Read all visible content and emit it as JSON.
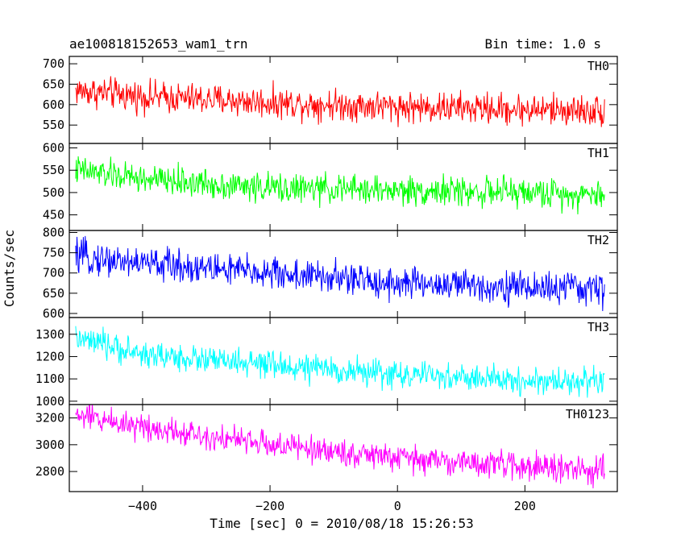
{
  "chart_data": {
    "type": "line",
    "title": "ae100818152653_wam1_trn",
    "bin_time_label": "Bin time: 1.0 s",
    "xlabel": "Time [sec] 0 = 2010/08/18 15:26:53",
    "ylabel": "Counts/sec",
    "xlim": [
      -515,
      345
    ],
    "x_range": [
      -505,
      325
    ],
    "x_ticks": [
      -400,
      -200,
      0,
      200
    ],
    "x_tick_labels": [
      "−400",
      "−200",
      "0",
      "200"
    ],
    "grid": false,
    "series": [
      {
        "name": "TH0",
        "color": "#ff0000",
        "ylim": [
          505,
          718
        ],
        "ticks": [
          550,
          600,
          650,
          700
        ],
        "trend": [
          [
            -505,
            635
          ],
          [
            -400,
            620
          ],
          [
            -200,
            605
          ],
          [
            0,
            595
          ],
          [
            200,
            588
          ],
          [
            325,
            585
          ]
        ],
        "noise": 28
      },
      {
        "name": "TH1",
        "color": "#00ff00",
        "ylim": [
          415,
          610
        ],
        "ticks": [
          450,
          500,
          550,
          600
        ],
        "trend": [
          [
            -505,
            550
          ],
          [
            -400,
            530
          ],
          [
            -200,
            510
          ],
          [
            0,
            505
          ],
          [
            200,
            500
          ],
          [
            325,
            495
          ]
        ],
        "noise": 24
      },
      {
        "name": "TH2",
        "color": "#0000ff",
        "ylim": [
          590,
          805
        ],
        "ticks": [
          600,
          650,
          700,
          750,
          800
        ],
        "trend": [
          [
            -505,
            740
          ],
          [
            -400,
            725
          ],
          [
            -200,
            700
          ],
          [
            0,
            675
          ],
          [
            200,
            665
          ],
          [
            325,
            660
          ]
        ],
        "noise": 30
      },
      {
        "name": "TH3",
        "color": "#00ffff",
        "ylim": [
          985,
          1375
        ],
        "ticks": [
          1000,
          1100,
          1200,
          1300
        ],
        "trend": [
          [
            -505,
            1280
          ],
          [
            -400,
            1210
          ],
          [
            -200,
            1160
          ],
          [
            0,
            1120
          ],
          [
            200,
            1090
          ],
          [
            325,
            1090
          ]
        ],
        "noise": 45
      },
      {
        "name": "TH0123",
        "color": "#ff00ff",
        "ylim": [
          2650,
          3300
        ],
        "ticks": [
          2800,
          3000,
          3200
        ],
        "trend": [
          [
            -505,
            3220
          ],
          [
            -400,
            3140
          ],
          [
            -200,
            3000
          ],
          [
            0,
            2900
          ],
          [
            200,
            2840
          ],
          [
            325,
            2800
          ]
        ],
        "noise": 75
      }
    ]
  }
}
